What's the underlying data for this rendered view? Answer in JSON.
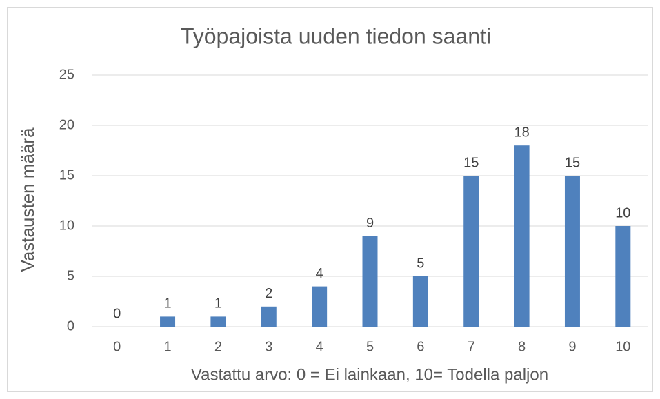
{
  "chart_data": {
    "type": "bar",
    "title": "Työpajoista uuden tiedon saanti",
    "x_label": "Vastattu arvo: 0 = Ei lainkaan, 10= Todella paljon",
    "y_label": "Vastausten määrä",
    "categories": [
      "0",
      "1",
      "2",
      "3",
      "4",
      "5",
      "6",
      "7",
      "8",
      "9",
      "10"
    ],
    "values": [
      0,
      1,
      1,
      2,
      4,
      9,
      5,
      15,
      18,
      15,
      10
    ],
    "color": "#4f81bd",
    "ylim": [
      0,
      25
    ],
    "yticks": [
      0,
      5,
      10,
      15,
      20,
      25
    ],
    "grid": true
  }
}
